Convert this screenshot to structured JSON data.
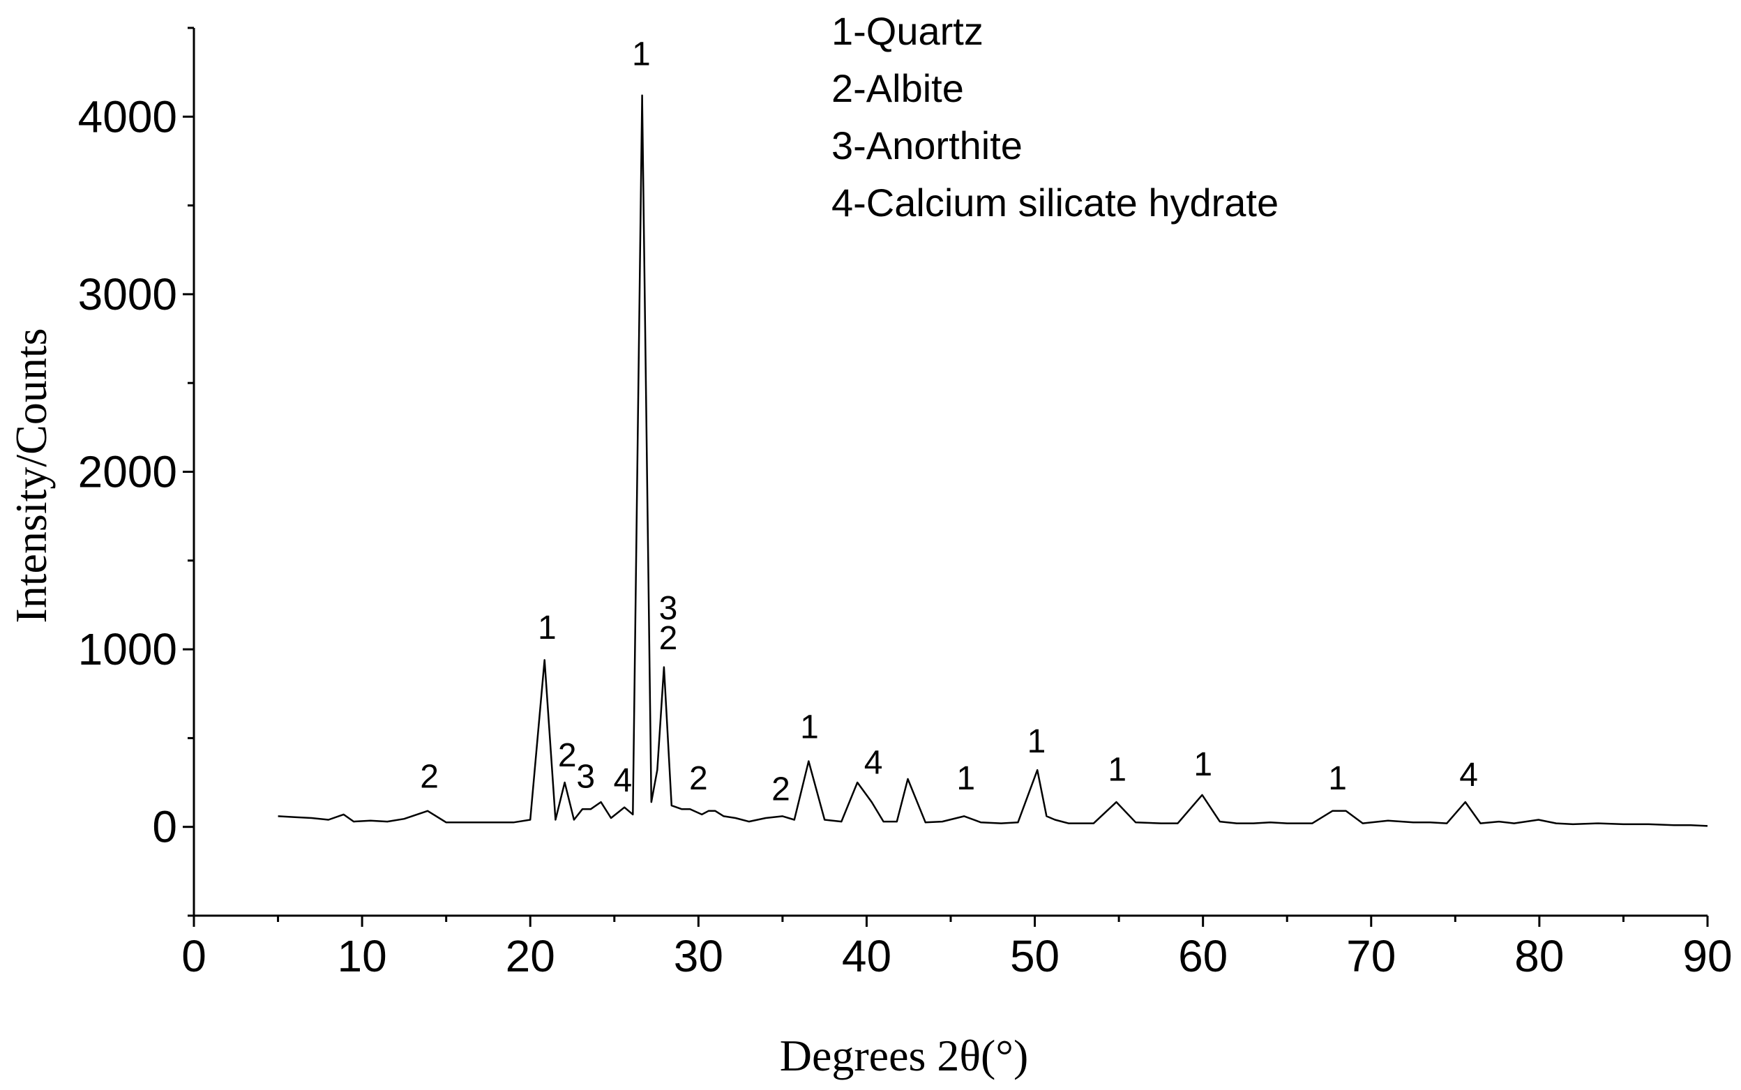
{
  "chart_data": {
    "type": "line",
    "xlabel": "Degrees 2θ(°)",
    "ylabel": "Intensity/Counts",
    "xlim": [
      0,
      90
    ],
    "ylim": [
      -500,
      4500
    ],
    "xticks": [
      0,
      10,
      20,
      30,
      40,
      50,
      60,
      70,
      80,
      90
    ],
    "yticks": [
      0,
      1000,
      2000,
      3000,
      4000
    ],
    "grid": false,
    "legend": {
      "placement": "top-center",
      "entries": [
        "1-Quartz",
        "2-Albite",
        "3-Anorthite",
        "4-Calcium silicate hydrate"
      ]
    },
    "series": [
      {
        "x": [
          5,
          6,
          7,
          8,
          8.9,
          9.5,
          10.5,
          11.5,
          12.5,
          13.9,
          15,
          16,
          17,
          18,
          19,
          20,
          20.85,
          21.5,
          22.05,
          22.6,
          23.1,
          23.6,
          24.2,
          24.8,
          25.6,
          26.1,
          26.65,
          27.2,
          27.55,
          27.95,
          28.4,
          29.0,
          29.5,
          30.2,
          30.6,
          31.0,
          31.5,
          32.2,
          33.0,
          34.0,
          35.0,
          35.7,
          36.55,
          37.5,
          38.5,
          39.45,
          40.3,
          41.0,
          41.8,
          42.45,
          43.5,
          44.5,
          45.8,
          46.8,
          48.0,
          49.0,
          50.15,
          50.7,
          51.2,
          52.0,
          53.5,
          54.85,
          56.0,
          57.5,
          58.5,
          59.95,
          61.0,
          62.0,
          63.0,
          64.0,
          65.0,
          66.5,
          67.7,
          68.1,
          68.5,
          69.5,
          71.0,
          72.5,
          73.5,
          74.5,
          75.6,
          76.5,
          77.6,
          78.5,
          79.95,
          81.0,
          82.0,
          83.5,
          85.0,
          86.5,
          88.0,
          89.0,
          90
        ],
        "y": [
          60,
          55,
          50,
          40,
          70,
          30,
          35,
          30,
          45,
          90,
          25,
          25,
          25,
          25,
          25,
          40,
          940,
          40,
          250,
          40,
          100,
          100,
          140,
          50,
          110,
          70,
          4120,
          140,
          320,
          900,
          120,
          100,
          100,
          70,
          90,
          90,
          60,
          50,
          30,
          50,
          60,
          40,
          370,
          40,
          30,
          250,
          140,
          30,
          30,
          270,
          25,
          30,
          60,
          25,
          20,
          25,
          320,
          60,
          40,
          20,
          20,
          140,
          25,
          20,
          20,
          180,
          30,
          20,
          20,
          25,
          20,
          20,
          90,
          90,
          90,
          20,
          35,
          25,
          25,
          20,
          140,
          20,
          30,
          20,
          40,
          20,
          15,
          20,
          15,
          15,
          10,
          10,
          5
        ]
      }
    ],
    "annotations": [
      {
        "text": "1",
        "x": 26.6,
        "y": 4290
      },
      {
        "text": "1",
        "x": 21.0,
        "y": 1060
      },
      {
        "text": "3",
        "x": 28.2,
        "y": 1170
      },
      {
        "text": "2",
        "x": 28.2,
        "y": 1000
      },
      {
        "text": "2",
        "x": 14.0,
        "y": 220
      },
      {
        "text": "2",
        "x": 22.2,
        "y": 340
      },
      {
        "text": "3",
        "x": 23.3,
        "y": 220
      },
      {
        "text": "4",
        "x": 25.5,
        "y": 200
      },
      {
        "text": "2",
        "x": 30.0,
        "y": 210
      },
      {
        "text": "2",
        "x": 34.9,
        "y": 150
      },
      {
        "text": "1",
        "x": 36.6,
        "y": 500
      },
      {
        "text": "4",
        "x": 40.4,
        "y": 300
      },
      {
        "text": "1",
        "x": 45.9,
        "y": 210
      },
      {
        "text": "1",
        "x": 50.1,
        "y": 420
      },
      {
        "text": "1",
        "x": 54.9,
        "y": 260
      },
      {
        "text": "1",
        "x": 60.0,
        "y": 290
      },
      {
        "text": "1",
        "x": 68.0,
        "y": 210
      },
      {
        "text": "4",
        "x": 75.8,
        "y": 230
      }
    ]
  }
}
